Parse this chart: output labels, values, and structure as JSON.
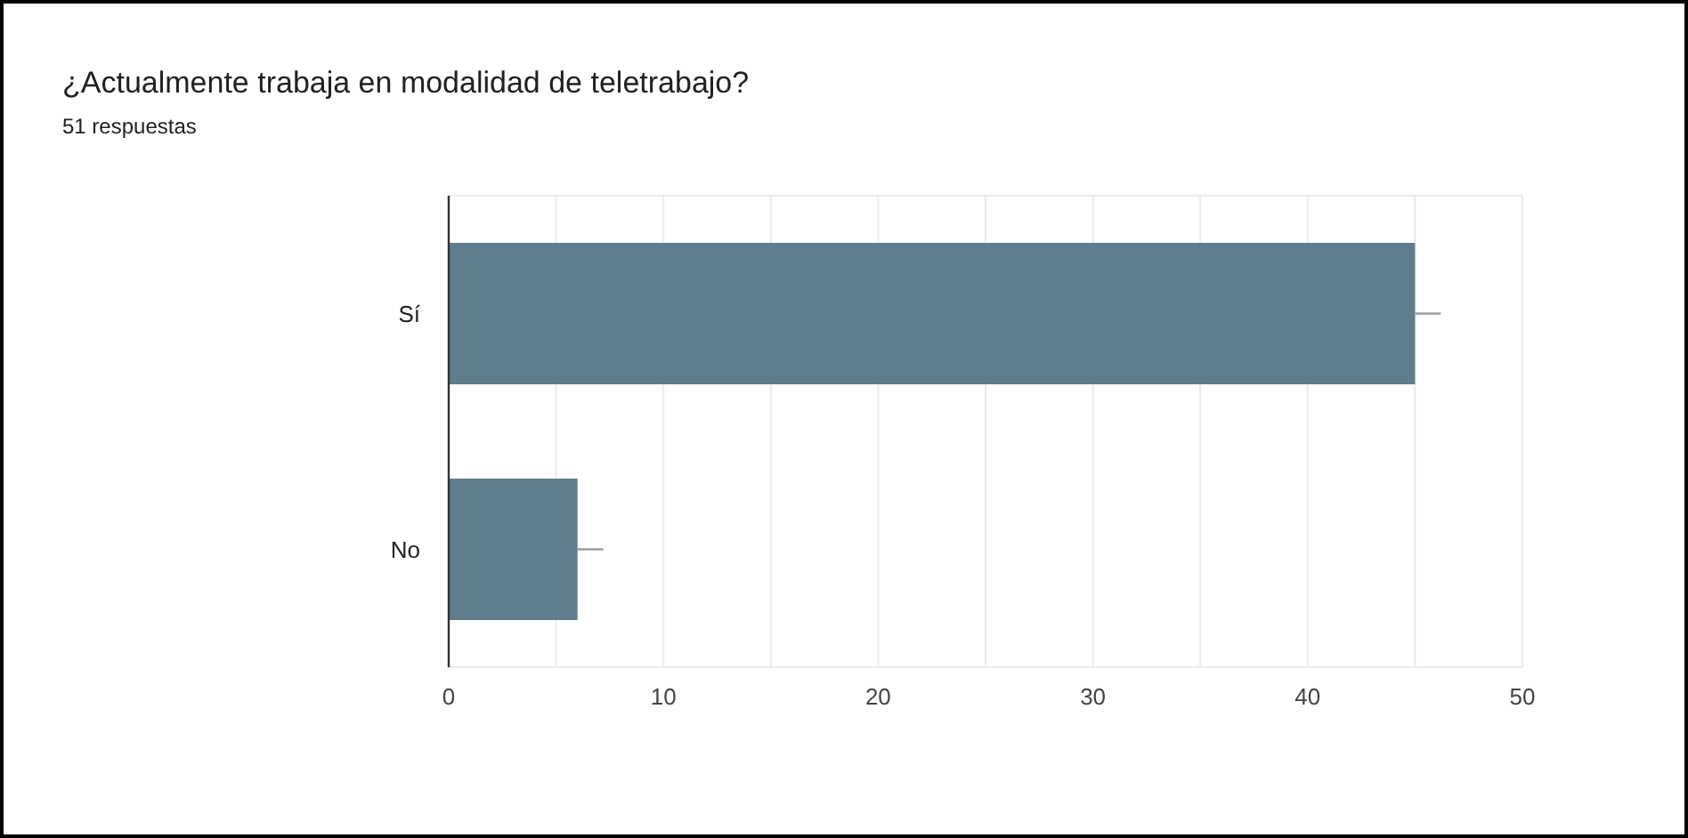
{
  "chart_data": {
    "type": "bar",
    "orientation": "horizontal",
    "title": "¿Actualmente trabaja en modalidad de teletrabajo?",
    "subtitle": "51 respuestas",
    "categories": [
      "Sí",
      "No"
    ],
    "values": [
      45,
      6
    ],
    "errors": [
      [
        45,
        46.2
      ],
      [
        6,
        7.2
      ]
    ],
    "color": "#607d8b",
    "xlim": [
      0,
      50
    ],
    "xticks": [
      0,
      {
        "value": 5,
        "label": null
      },
      10,
      {
        "value": 15,
        "label": null
      },
      20,
      {
        "value": 25,
        "label": null
      },
      30,
      {
        "value": 35,
        "label": null
      },
      40,
      {
        "value": 45,
        "label": null
      },
      50
    ],
    "grid": "x"
  }
}
